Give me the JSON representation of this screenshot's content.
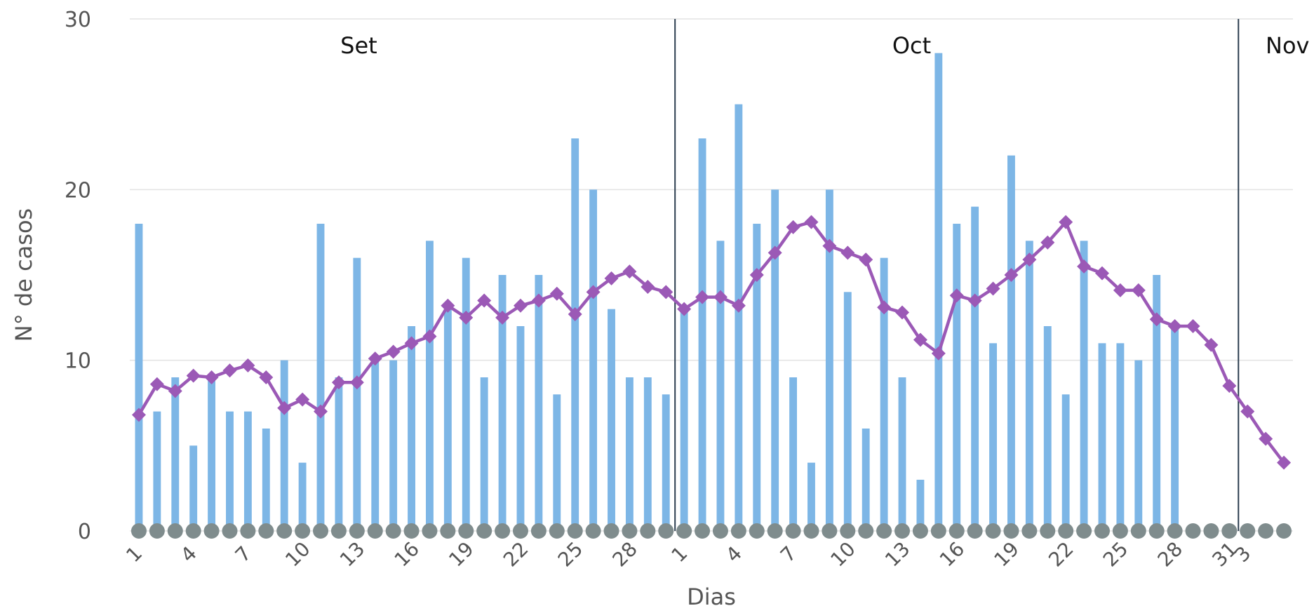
{
  "chart_data": {
    "type": "bar",
    "xlabel": "Dias",
    "ylabel": "N° de casos",
    "ylim": [
      0,
      30
    ],
    "yticks": [
      0,
      10,
      20,
      30
    ],
    "grid": true,
    "months": [
      "Set",
      "Oct",
      "Nov"
    ],
    "x": [
      "1",
      "2",
      "3",
      "4",
      "5",
      "6",
      "7",
      "8",
      "9",
      "10",
      "11",
      "12",
      "13",
      "14",
      "15",
      "16",
      "17",
      "18",
      "19",
      "20",
      "21",
      "22",
      "23",
      "24",
      "25",
      "26",
      "27",
      "28",
      "29",
      "30",
      "1",
      "2",
      "3",
      "4",
      "5",
      "6",
      "7",
      "8",
      "9",
      "10",
      "11",
      "12",
      "13",
      "14",
      "15",
      "16",
      "17",
      "18",
      "19",
      "20",
      "21",
      "22",
      "23",
      "24",
      "25",
      "26",
      "27",
      "28",
      "29",
      "30",
      "31",
      "1",
      "2",
      "3"
    ],
    "xtick_labels": [
      "1",
      "4",
      "7",
      "10",
      "13",
      "16",
      "19",
      "22",
      "25",
      "28",
      "1",
      "4",
      "7",
      "10",
      "13",
      "16",
      "19",
      "22",
      "25",
      "28",
      "31",
      "3"
    ],
    "colors": {
      "bars": "#7db6e6",
      "line": "#9b59b6",
      "zero_markers": "#7f8c8d",
      "month_divider": "#2c3e50"
    },
    "series": [
      {
        "kind": "bar",
        "values": [
          18,
          7,
          9,
          5,
          9,
          7,
          7,
          6,
          10,
          4,
          18,
          9,
          16,
          10,
          10,
          12,
          17,
          13,
          16,
          9,
          15,
          12,
          15,
          8,
          23,
          20,
          13,
          9,
          9,
          8,
          13,
          23,
          17,
          25,
          18,
          20,
          9,
          4,
          20,
          14,
          6,
          16,
          9,
          3,
          28,
          18,
          19,
          11,
          22,
          17,
          12,
          8,
          17,
          11,
          11,
          10,
          15,
          12,
          0,
          0,
          0,
          0,
          0,
          0
        ]
      },
      {
        "kind": "line",
        "values": [
          6.8,
          8.6,
          8.2,
          9.1,
          9.0,
          9.4,
          9.7,
          9.0,
          7.2,
          7.7,
          7.0,
          8.7,
          8.7,
          10.1,
          10.5,
          11.0,
          11.4,
          13.2,
          12.5,
          13.5,
          12.5,
          13.2,
          13.5,
          13.9,
          12.7,
          14.0,
          14.8,
          15.2,
          14.3,
          14.0,
          13.0,
          13.7,
          13.7,
          13.2,
          15.0,
          16.3,
          17.8,
          18.1,
          16.7,
          16.3,
          15.9,
          13.1,
          12.8,
          11.2,
          10.4,
          13.8,
          13.5,
          14.2,
          15.0,
          15.9,
          16.9,
          18.1,
          15.5,
          15.1,
          14.1,
          14.1,
          12.4,
          12.0,
          12.0,
          10.9,
          8.5,
          7.0,
          5.4,
          4.0
        ]
      },
      {
        "kind": "scatter",
        "values": [
          0,
          0,
          0,
          0,
          0,
          0,
          0,
          0,
          0,
          0,
          0,
          0,
          0,
          0,
          0,
          0,
          0,
          0,
          0,
          0,
          0,
          0,
          0,
          0,
          0,
          0,
          0,
          0,
          0,
          0,
          0,
          0,
          0,
          0,
          0,
          0,
          0,
          0,
          0,
          0,
          0,
          0,
          0,
          0,
          0,
          0,
          0,
          0,
          0,
          0,
          0,
          0,
          0,
          0,
          0,
          0,
          0,
          0,
          0,
          0,
          0,
          0,
          0,
          0
        ]
      }
    ]
  }
}
